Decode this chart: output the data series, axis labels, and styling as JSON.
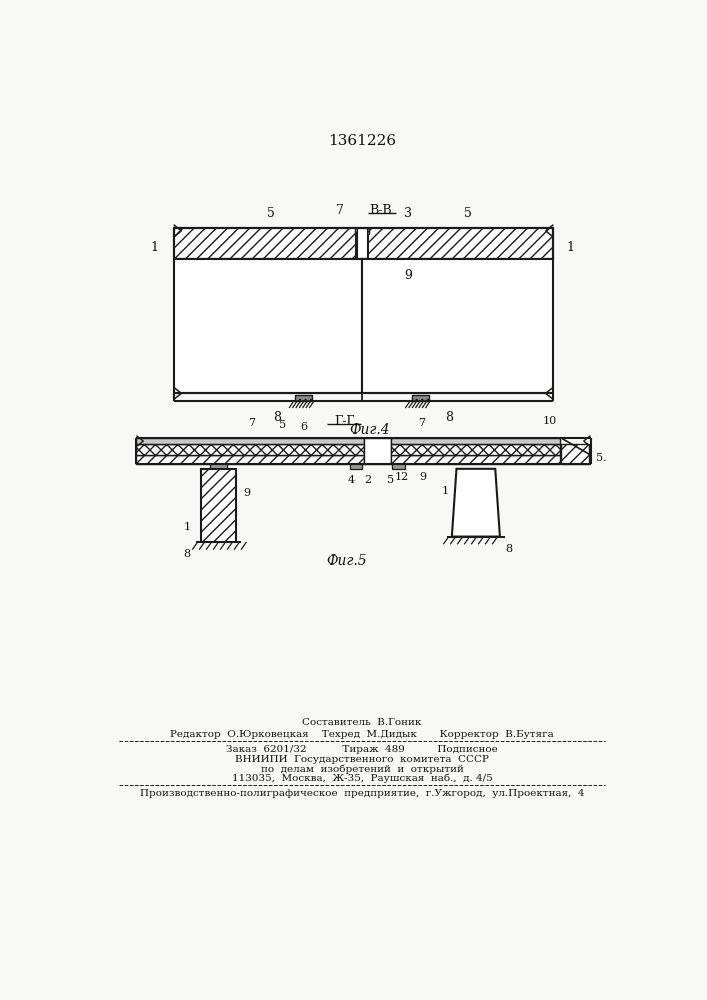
{
  "title_text": "1361226",
  "fig4_label": "Фиг.4",
  "fig5_label": "Фиг.5",
  "vb_label": "В-В",
  "gg_label": "Г-Г",
  "background": "#f8f8f6",
  "line_color": "#1a1a1a",
  "footer_lines": [
    "Составитель  В.Гоник",
    "Редактор  О.Юрковецкая    Техред  М.Дидык       Корректор  В.Бутяга",
    "Заказ  6201/32           Тираж  489          Подписное",
    "ВНИИПИ  Государственного  комитета  СССР",
    "по  делам  изобретений  и  открытий",
    "113035,  Москва,  Ж-35,  Раушская  наб.,  д. 4/5",
    "Производственно-полиграфическое  предприятие,  г.Ужгород,  ул.Проектная,  4"
  ]
}
